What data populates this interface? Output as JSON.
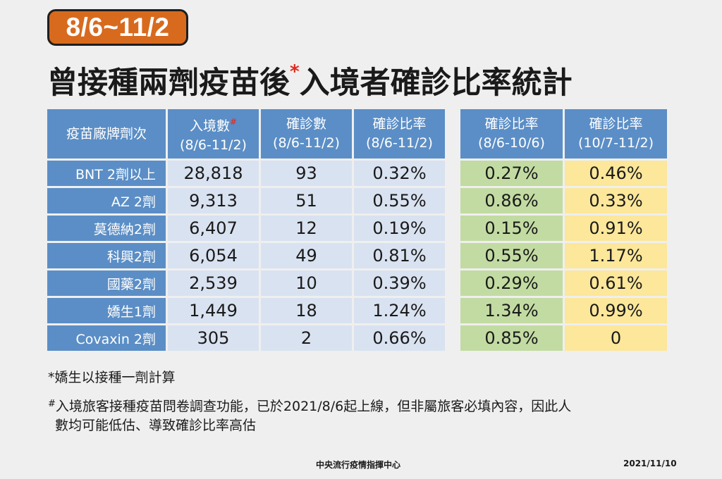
{
  "date_range": "8/6~11/2",
  "title": {
    "main": "曾接種兩劑疫苗後",
    "star": "*",
    "rest": "入境者確診比率統計"
  },
  "main_table": {
    "headers": [
      {
        "line1": "疫苗廠牌劑次",
        "sup": "",
        "line2": ""
      },
      {
        "line1": "入境數",
        "sup": "#",
        "line2": "(8/6-11/2)"
      },
      {
        "line1": "確診數",
        "sup": "",
        "line2": "(8/6-11/2)"
      },
      {
        "line1": "確診比率",
        "sup": "",
        "line2": "(8/6-11/2)"
      }
    ],
    "rows": [
      {
        "brand": "BNT 2劑以上",
        "arrivals": "28,818",
        "cases": "93",
        "rate": "0.32%"
      },
      {
        "brand": "AZ 2劑",
        "arrivals": "9,313",
        "cases": "51",
        "rate": "0.55%"
      },
      {
        "brand": "莫德納2劑",
        "arrivals": "6,407",
        "cases": "12",
        "rate": "0.19%"
      },
      {
        "brand": "科興2劑",
        "arrivals": "6,054",
        "cases": "49",
        "rate": "0.81%"
      },
      {
        "brand": "國藥2劑",
        "arrivals": "2,539",
        "cases": "10",
        "rate": "0.39%"
      },
      {
        "brand": "嬌生1劑",
        "arrivals": "1,449",
        "cases": "18",
        "rate": "1.24%"
      },
      {
        "brand": "Covaxin 2劑",
        "arrivals": "305",
        "cases": "2",
        "rate": "0.66%"
      }
    ]
  },
  "side_table": {
    "headers": [
      {
        "line1": "確診比率",
        "line2": "(8/6-10/6)"
      },
      {
        "line1": "確診比率",
        "line2": "(10/7-11/2)"
      }
    ],
    "rows": [
      {
        "early": "0.27%",
        "late": "0.46%"
      },
      {
        "early": "0.86%",
        "late": "0.33%"
      },
      {
        "early": "0.15%",
        "late": "0.91%"
      },
      {
        "early": "0.55%",
        "late": "1.17%"
      },
      {
        "early": "0.29%",
        "late": "0.61%"
      },
      {
        "early": "1.34%",
        "late": "0.99%"
      },
      {
        "early": "0.85%",
        "late": "0"
      }
    ]
  },
  "notes": [
    {
      "mark": "*",
      "text": "嬌生以接種一劑計算"
    },
    {
      "mark": "#",
      "text": "入境旅客接種疫苗問卷調查功能，已於2021/8/6起上線，但非屬旅客必填內容，因此人"
    },
    {
      "mark": "",
      "text": "數均可能低估、導致確診比率高估"
    }
  ],
  "footer": {
    "org": "中央流行疫情指揮中心",
    "date": "2021/11/10"
  },
  "colors": {
    "badge": "#d86a1e",
    "header_blue": "#5b8ec6",
    "cell_blue": "#d9e2f0",
    "cell_green": "#c2dba2",
    "cell_yellow": "#fce79a",
    "accent_red": "#e0281e"
  }
}
